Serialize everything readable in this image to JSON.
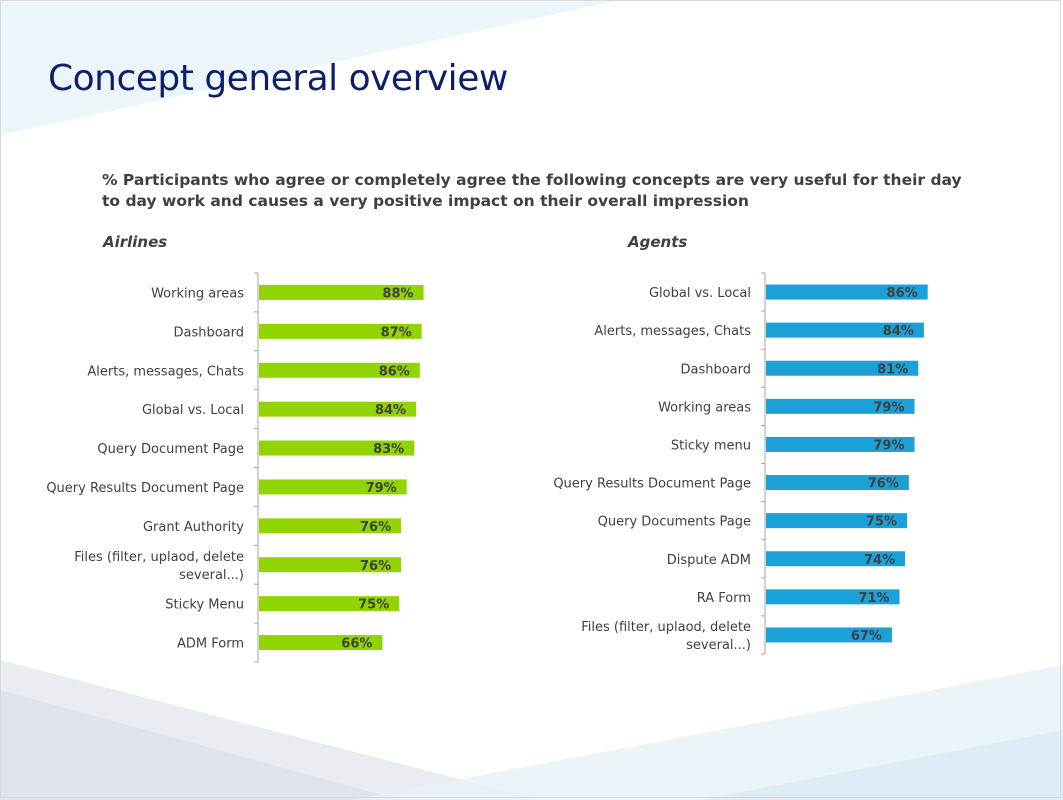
{
  "slide": {
    "title": "Concept general overview",
    "subtitle": "% Participants who agree or completely agree the following concepts are very useful for their day to day work  and causes a very positive impact on their overall impression"
  },
  "colors": {
    "airlines_bar": "#92d400",
    "agents_bar": "#1ba0d8",
    "title": "#0b1f6b",
    "text": "#404040"
  },
  "chart_data": [
    {
      "type": "bar",
      "orientation": "horizontal",
      "title": "Airlines",
      "categories": [
        "Working areas",
        "Dashboard",
        "Alerts, messages, Chats",
        "Global vs. Local",
        "Query Document Page",
        "Query Results Document Page",
        "Grant Authority",
        "Files (filter, uplaod, delete several...)",
        "Sticky Menu",
        "ADM Form"
      ],
      "category_lines": [
        [
          "Working areas"
        ],
        [
          "Dashboard"
        ],
        [
          "Alerts, messages, Chats"
        ],
        [
          "Global vs. Local"
        ],
        [
          "Query Document Page"
        ],
        [
          "Query Results Document Page"
        ],
        [
          "Grant Authority"
        ],
        [
          "Files (filter, uplaod, delete",
          "several...)"
        ],
        [
          "Sticky Menu"
        ],
        [
          "ADM Form"
        ]
      ],
      "values": [
        88,
        87,
        86,
        84,
        83,
        79,
        76,
        76,
        75,
        66
      ],
      "value_labels": [
        "88%",
        "87%",
        "86%",
        "84%",
        "83%",
        "79%",
        "76%",
        "76%",
        "75%",
        "66%"
      ],
      "xlim": [
        0,
        100
      ],
      "grid": false,
      "legend": "none"
    },
    {
      "type": "bar",
      "orientation": "horizontal",
      "title": "Agents",
      "categories": [
        "Global vs. Local",
        "Alerts, messages, Chats",
        "Dashboard",
        "Working areas",
        "Sticky menu",
        "Query Results Document Page",
        "Query Documents Page",
        "Dispute ADM",
        "RA Form",
        "Files (filter, uplaod, delete several...)"
      ],
      "category_lines": [
        [
          "Global vs. Local"
        ],
        [
          "Alerts, messages, Chats"
        ],
        [
          "Dashboard"
        ],
        [
          "Working areas"
        ],
        [
          "Sticky menu"
        ],
        [
          "Query Results Document Page"
        ],
        [
          "Query Documents Page"
        ],
        [
          "Dispute ADM"
        ],
        [
          "RA Form"
        ],
        [
          "Files (filter, uplaod, delete",
          "several...)"
        ]
      ],
      "values": [
        86,
        84,
        81,
        79,
        79,
        76,
        75,
        74,
        71,
        67
      ],
      "value_labels": [
        "86%",
        "84%",
        "81%",
        "79%",
        "79%",
        "76%",
        "75%",
        "74%",
        "71%",
        "67%"
      ],
      "xlim": [
        0,
        100
      ],
      "grid": false,
      "legend": "none"
    }
  ]
}
